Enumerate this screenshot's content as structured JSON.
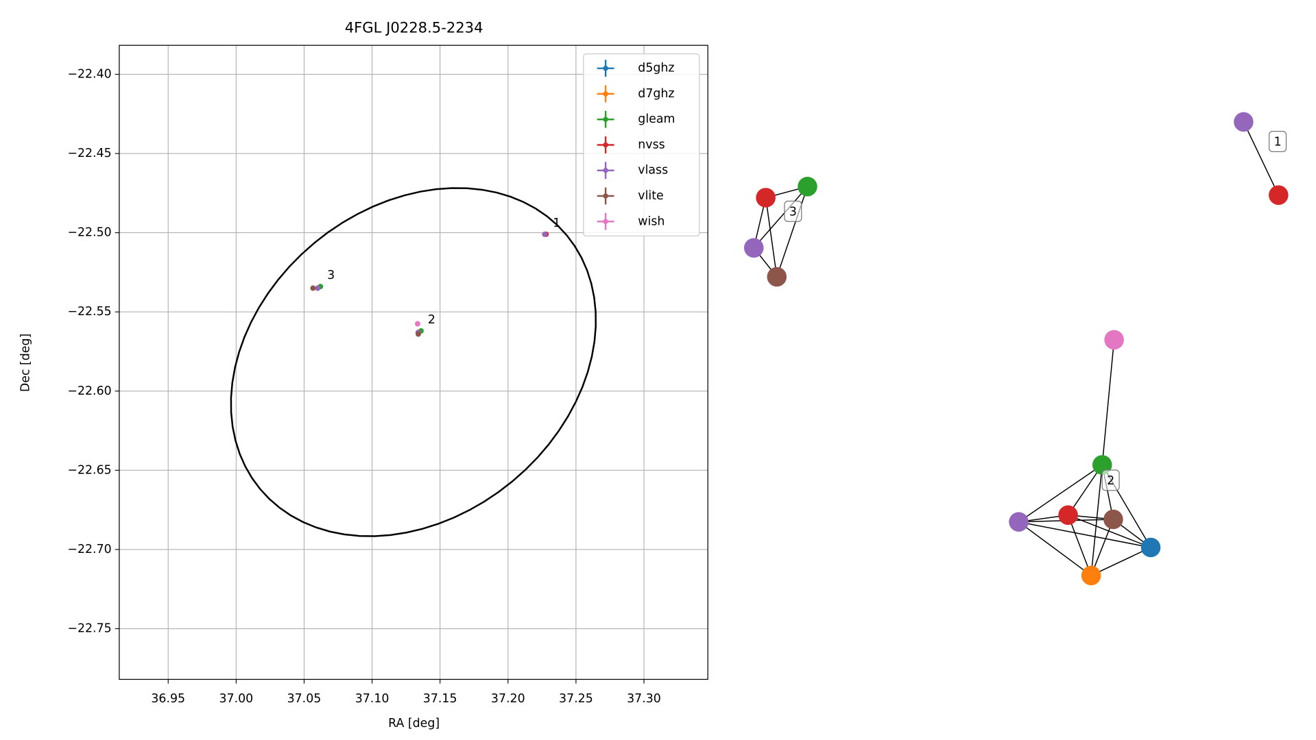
{
  "chart_data": [
    {
      "type": "scatter",
      "title": "4FGL J0228.5-2234",
      "xlabel": "RA [deg]",
      "ylabel": "Dec [deg]",
      "xlim": [
        36.914,
        37.347
      ],
      "ylim": [
        -22.782,
        -22.3817
      ],
      "xticks": [
        36.95,
        {
          "value": 37,
          "label": "37.00"
        },
        37.05,
        {
          "value": 37.1,
          "label": "37.10"
        },
        37.15,
        {
          "value": 37.2,
          "label": "37.20"
        },
        37.25,
        {
          "value": 37.3,
          "label": "37.30"
        }
      ],
      "yticks": [
        {
          "value": -22.4,
          "label": "−22.40"
        },
        {
          "value": -22.45,
          "label": "−22.45"
        },
        {
          "value": -22.5,
          "label": "−22.50"
        },
        {
          "value": -22.55,
          "label": "−22.55"
        },
        {
          "value": -22.6,
          "label": "−22.60"
        },
        {
          "value": -22.65,
          "label": "−22.65"
        },
        {
          "value": -22.7,
          "label": "−22.70"
        },
        {
          "value": -22.75,
          "label": "−22.75"
        }
      ],
      "grid": true,
      "legend": "upper right",
      "series": [
        {
          "name": "d5ghz",
          "color": "#1f77b4",
          "x": [
            37.134
          ],
          "y": [
            -22.563
          ]
        },
        {
          "name": "d7ghz",
          "color": "#ff7f0e",
          "x": [
            37.134
          ],
          "y": [
            -22.563
          ]
        },
        {
          "name": "gleam",
          "color": "#2ca02c",
          "x": [
            37.062,
            37.136
          ],
          "y": [
            -22.534,
            -22.562
          ]
        },
        {
          "name": "nvss",
          "color": "#d62728",
          "x": [
            37.228,
            37.06,
            37.134
          ],
          "y": [
            -22.501,
            -22.535,
            -22.563
          ]
        },
        {
          "name": "vlass",
          "color": "#9467bd",
          "x": [
            37.227,
            37.06,
            37.134
          ],
          "y": [
            -22.501,
            -22.535,
            -22.563
          ]
        },
        {
          "name": "vlite",
          "color": "#8c564b",
          "x": [
            37.0565,
            37.134
          ],
          "y": [
            -22.535,
            -22.564
          ]
        },
        {
          "name": "wish",
          "color": "#e377c2",
          "x": [
            37.1335
          ],
          "y": [
            -22.5575
          ]
        }
      ],
      "ellipse": {
        "center": [
          37.1304,
          -22.5817
        ],
        "axis1": [
          0.1128,
          0.0801
        ],
        "axis2": [
          -0.0728,
          0.0753
        ],
        "color": "#000000"
      },
      "annotations": [
        {
          "text": "1",
          "x": 37.228,
          "y": -22.501
        },
        {
          "text": "2",
          "x": 37.136,
          "y": -22.562
        },
        {
          "text": "3",
          "x": 37.062,
          "y": -22.534
        }
      ]
    },
    {
      "type": "network",
      "nodes": [
        {
          "color": "#9467bd"
        },
        {
          "color": "#d62728"
        },
        {
          "color": "#d62728"
        },
        {
          "color": "#2ca02c"
        },
        {
          "color": "#9467bd"
        },
        {
          "color": "#8c564b"
        },
        {
          "color": "#e377c2"
        },
        {
          "color": "#2ca02c"
        },
        {
          "color": "#9467bd"
        },
        {
          "color": "#d62728"
        },
        {
          "color": "#8c564b"
        },
        {
          "color": "#1f77b4"
        },
        {
          "color": "#ff7f0e"
        }
      ],
      "edges": [
        [
          0,
          1
        ],
        [
          2,
          3
        ],
        [
          2,
          4
        ],
        [
          2,
          5
        ],
        [
          3,
          4
        ],
        [
          3,
          5
        ],
        [
          4,
          5
        ],
        [
          6,
          7
        ],
        [
          7,
          8
        ],
        [
          7,
          9
        ],
        [
          7,
          10
        ],
        [
          7,
          11
        ],
        [
          7,
          12
        ],
        [
          8,
          9
        ],
        [
          8,
          10
        ],
        [
          8,
          11
        ],
        [
          8,
          12
        ],
        [
          9,
          10
        ],
        [
          9,
          11
        ],
        [
          9,
          12
        ],
        [
          10,
          11
        ],
        [
          10,
          12
        ],
        [
          11,
          12
        ]
      ],
      "clusters": [
        {
          "label": "1"
        },
        {
          "label": "2"
        },
        {
          "label": "3"
        }
      ]
    }
  ]
}
